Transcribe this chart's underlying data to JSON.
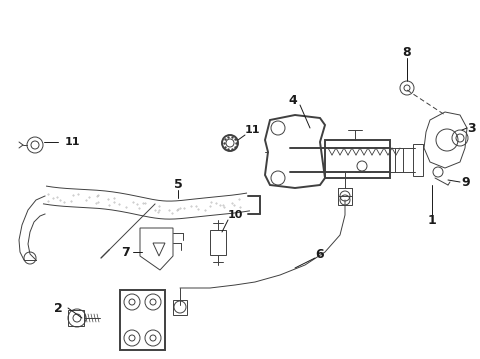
{
  "background_color": "#ffffff",
  "line_color": "#404040",
  "text_color": "#1a1a1a",
  "figsize": [
    4.8,
    3.59
  ],
  "dpi": 100,
  "xlim": [
    0,
    480
  ],
  "ylim": [
    0,
    359
  ]
}
